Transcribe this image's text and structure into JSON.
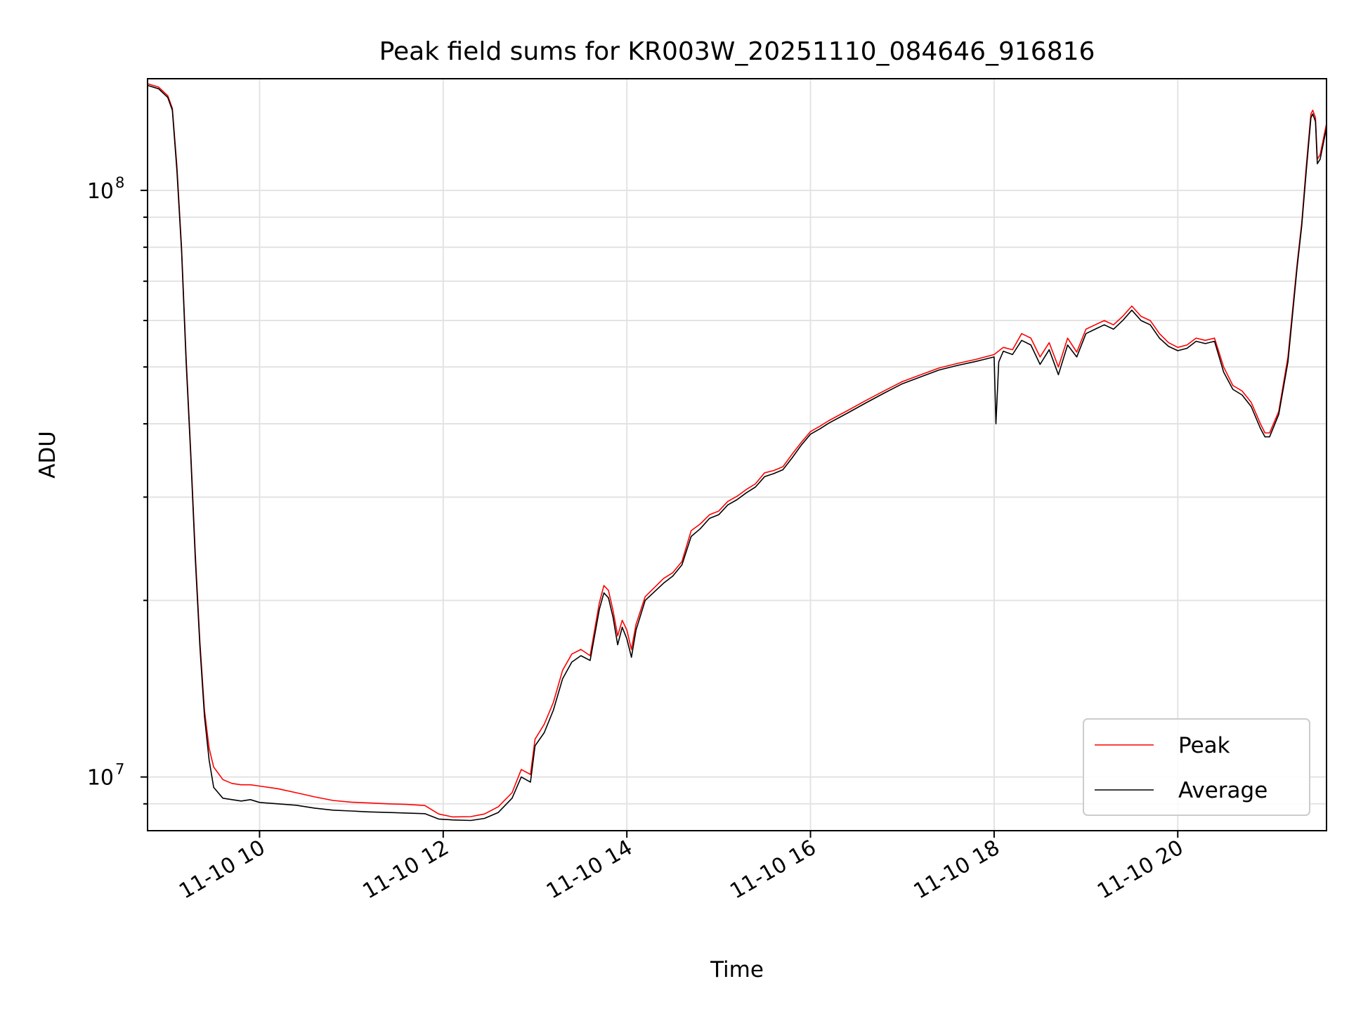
{
  "chart_data": {
    "type": "line",
    "title": "Peak field sums for KR003W_20251110_084646_916816",
    "xlabel": "Time",
    "ylabel": "ADU",
    "x_unit": "hours",
    "xlim": [
      8.78,
      21.62
    ],
    "ylim": [
      8100000,
      155000000
    ],
    "yscale": "log",
    "grid": true,
    "legend_position": "lower-right",
    "x_ticks": [
      {
        "value": 10,
        "label": "11-10 10"
      },
      {
        "value": 12,
        "label": "11-10 12"
      },
      {
        "value": 14,
        "label": "11-10 14"
      },
      {
        "value": 16,
        "label": "11-10 16"
      },
      {
        "value": 18,
        "label": "11-10 18"
      },
      {
        "value": 20,
        "label": "11-10 20"
      }
    ],
    "y_ticks": [
      {
        "value": 10000000,
        "base": "10",
        "exp": "7"
      },
      {
        "value": 100000000,
        "base": "10",
        "exp": "8"
      }
    ],
    "series": [
      {
        "name": "Peak",
        "color": "#ff0000",
        "points": [
          [
            8.78,
            152000000
          ],
          [
            8.9,
            150000000
          ],
          [
            9.0,
            145000000
          ],
          [
            9.05,
            138000000
          ],
          [
            9.1,
            110000000
          ],
          [
            9.15,
            80000000
          ],
          [
            9.2,
            52000000
          ],
          [
            9.25,
            36000000
          ],
          [
            9.3,
            24000000
          ],
          [
            9.35,
            17000000
          ],
          [
            9.4,
            13000000
          ],
          [
            9.45,
            11200000
          ],
          [
            9.5,
            10400000
          ],
          [
            9.6,
            9900000
          ],
          [
            9.7,
            9750000
          ],
          [
            9.8,
            9700000
          ],
          [
            9.9,
            9700000
          ],
          [
            10.0,
            9650000
          ],
          [
            10.2,
            9550000
          ],
          [
            10.4,
            9400000
          ],
          [
            10.6,
            9250000
          ],
          [
            10.8,
            9120000
          ],
          [
            11.0,
            9060000
          ],
          [
            11.2,
            9030000
          ],
          [
            11.4,
            9000000
          ],
          [
            11.6,
            8980000
          ],
          [
            11.8,
            8940000
          ],
          [
            11.95,
            8650000
          ],
          [
            12.1,
            8550000
          ],
          [
            12.3,
            8560000
          ],
          [
            12.45,
            8650000
          ],
          [
            12.6,
            8900000
          ],
          [
            12.75,
            9400000
          ],
          [
            12.85,
            10300000
          ],
          [
            12.95,
            10100000
          ],
          [
            13.0,
            11600000
          ],
          [
            13.1,
            12300000
          ],
          [
            13.2,
            13400000
          ],
          [
            13.3,
            15200000
          ],
          [
            13.4,
            16200000
          ],
          [
            13.5,
            16500000
          ],
          [
            13.6,
            16100000
          ],
          [
            13.7,
            19800000
          ],
          [
            13.75,
            21200000
          ],
          [
            13.8,
            20800000
          ],
          [
            13.85,
            19200000
          ],
          [
            13.9,
            17400000
          ],
          [
            13.95,
            18500000
          ],
          [
            14.0,
            17800000
          ],
          [
            14.05,
            16500000
          ],
          [
            14.1,
            18200000
          ],
          [
            14.2,
            20300000
          ],
          [
            14.4,
            21800000
          ],
          [
            14.5,
            22300000
          ],
          [
            14.6,
            23300000
          ],
          [
            14.7,
            26300000
          ],
          [
            14.8,
            27000000
          ],
          [
            14.9,
            28000000
          ],
          [
            15.0,
            28400000
          ],
          [
            15.1,
            29500000
          ],
          [
            15.2,
            30100000
          ],
          [
            15.3,
            30900000
          ],
          [
            15.4,
            31600000
          ],
          [
            15.5,
            33000000
          ],
          [
            15.6,
            33300000
          ],
          [
            15.7,
            33800000
          ],
          [
            15.8,
            35500000
          ],
          [
            15.9,
            37200000
          ],
          [
            16.0,
            38800000
          ],
          [
            16.1,
            39600000
          ],
          [
            16.2,
            40500000
          ],
          [
            16.4,
            42100000
          ],
          [
            16.6,
            43800000
          ],
          [
            16.8,
            45500000
          ],
          [
            17.0,
            47200000
          ],
          [
            17.2,
            48500000
          ],
          [
            17.4,
            49800000
          ],
          [
            17.6,
            50700000
          ],
          [
            17.8,
            51500000
          ],
          [
            18.0,
            52500000
          ],
          [
            18.1,
            54000000
          ],
          [
            18.2,
            53500000
          ],
          [
            18.3,
            57000000
          ],
          [
            18.4,
            56000000
          ],
          [
            18.5,
            52000000
          ],
          [
            18.6,
            55000000
          ],
          [
            18.7,
            50000000
          ],
          [
            18.8,
            56000000
          ],
          [
            18.9,
            53000000
          ],
          [
            19.0,
            58000000
          ],
          [
            19.1,
            59000000
          ],
          [
            19.2,
            60000000
          ],
          [
            19.3,
            59000000
          ],
          [
            19.4,
            61000000
          ],
          [
            19.5,
            63500000
          ],
          [
            19.6,
            61000000
          ],
          [
            19.7,
            60000000
          ],
          [
            19.8,
            57000000
          ],
          [
            19.9,
            55000000
          ],
          [
            20.0,
            54000000
          ],
          [
            20.1,
            54500000
          ],
          [
            20.2,
            56000000
          ],
          [
            20.3,
            55500000
          ],
          [
            20.4,
            56000000
          ],
          [
            20.5,
            50000000
          ],
          [
            20.6,
            46500000
          ],
          [
            20.7,
            45500000
          ],
          [
            20.8,
            43500000
          ],
          [
            20.9,
            40000000
          ],
          [
            20.95,
            38600000
          ],
          [
            21.0,
            38600000
          ],
          [
            21.1,
            42000000
          ],
          [
            21.2,
            52000000
          ],
          [
            21.3,
            75000000
          ],
          [
            21.35,
            88000000
          ],
          [
            21.4,
            110000000
          ],
          [
            21.45,
            135000000
          ],
          [
            21.47,
            137000000
          ],
          [
            21.5,
            133000000
          ],
          [
            21.52,
            113000000
          ],
          [
            21.55,
            115000000
          ],
          [
            21.62,
            130000000
          ]
        ]
      },
      {
        "name": "Average",
        "color": "#000000",
        "points": [
          [
            8.78,
            151000000
          ],
          [
            8.9,
            149000000
          ],
          [
            9.0,
            144000000
          ],
          [
            9.05,
            137000000
          ],
          [
            9.1,
            108000000
          ],
          [
            9.15,
            79000000
          ],
          [
            9.2,
            51000000
          ],
          [
            9.25,
            35500000
          ],
          [
            9.3,
            23500000
          ],
          [
            9.35,
            16700000
          ],
          [
            9.4,
            12700000
          ],
          [
            9.45,
            10700000
          ],
          [
            9.5,
            9600000
          ],
          [
            9.6,
            9200000
          ],
          [
            9.7,
            9150000
          ],
          [
            9.8,
            9100000
          ],
          [
            9.9,
            9150000
          ],
          [
            10.0,
            9050000
          ],
          [
            10.2,
            9000000
          ],
          [
            10.4,
            8950000
          ],
          [
            10.6,
            8850000
          ],
          [
            10.8,
            8780000
          ],
          [
            11.0,
            8750000
          ],
          [
            11.2,
            8720000
          ],
          [
            11.4,
            8700000
          ],
          [
            11.6,
            8680000
          ],
          [
            11.8,
            8660000
          ],
          [
            11.95,
            8480000
          ],
          [
            12.1,
            8450000
          ],
          [
            12.3,
            8430000
          ],
          [
            12.45,
            8500000
          ],
          [
            12.6,
            8700000
          ],
          [
            12.75,
            9200000
          ],
          [
            12.85,
            10000000
          ],
          [
            12.95,
            9800000
          ],
          [
            13.0,
            11300000
          ],
          [
            13.1,
            11900000
          ],
          [
            13.2,
            13000000
          ],
          [
            13.3,
            14700000
          ],
          [
            13.4,
            15700000
          ],
          [
            13.5,
            16100000
          ],
          [
            13.6,
            15800000
          ],
          [
            13.7,
            19300000
          ],
          [
            13.75,
            20600000
          ],
          [
            13.8,
            20200000
          ],
          [
            13.85,
            18700000
          ],
          [
            13.9,
            16800000
          ],
          [
            13.95,
            18000000
          ],
          [
            14.0,
            17200000
          ],
          [
            14.05,
            16000000
          ],
          [
            14.1,
            17800000
          ],
          [
            14.2,
            20000000
          ],
          [
            14.4,
            21400000
          ],
          [
            14.5,
            22000000
          ],
          [
            14.6,
            23000000
          ],
          [
            14.7,
            25700000
          ],
          [
            14.8,
            26500000
          ],
          [
            14.9,
            27600000
          ],
          [
            15.0,
            28000000
          ],
          [
            15.1,
            29100000
          ],
          [
            15.2,
            29700000
          ],
          [
            15.3,
            30500000
          ],
          [
            15.4,
            31200000
          ],
          [
            15.5,
            32500000
          ],
          [
            15.6,
            32900000
          ],
          [
            15.7,
            33400000
          ],
          [
            15.8,
            35000000
          ],
          [
            15.9,
            36800000
          ],
          [
            16.0,
            38400000
          ],
          [
            16.1,
            39200000
          ],
          [
            16.2,
            40100000
          ],
          [
            16.4,
            41700000
          ],
          [
            16.6,
            43400000
          ],
          [
            16.8,
            45100000
          ],
          [
            17.0,
            46800000
          ],
          [
            17.2,
            48100000
          ],
          [
            17.4,
            49400000
          ],
          [
            17.6,
            50300000
          ],
          [
            17.8,
            51100000
          ],
          [
            18.0,
            52000000
          ],
          [
            18.02,
            40000000
          ],
          [
            18.05,
            51000000
          ],
          [
            18.1,
            53200000
          ],
          [
            18.2,
            52500000
          ],
          [
            18.3,
            55500000
          ],
          [
            18.4,
            54500000
          ],
          [
            18.5,
            50500000
          ],
          [
            18.6,
            53500000
          ],
          [
            18.7,
            48500000
          ],
          [
            18.8,
            54500000
          ],
          [
            18.9,
            52000000
          ],
          [
            19.0,
            57000000
          ],
          [
            19.1,
            58000000
          ],
          [
            19.2,
            59000000
          ],
          [
            19.3,
            58000000
          ],
          [
            19.4,
            60000000
          ],
          [
            19.5,
            62500000
          ],
          [
            19.6,
            60000000
          ],
          [
            19.7,
            59000000
          ],
          [
            19.8,
            56000000
          ],
          [
            19.9,
            54200000
          ],
          [
            20.0,
            53300000
          ],
          [
            20.1,
            53800000
          ],
          [
            20.2,
            55300000
          ],
          [
            20.3,
            54800000
          ],
          [
            20.4,
            55300000
          ],
          [
            20.5,
            49000000
          ],
          [
            20.6,
            45800000
          ],
          [
            20.7,
            44800000
          ],
          [
            20.8,
            42800000
          ],
          [
            20.9,
            39300000
          ],
          [
            20.95,
            38000000
          ],
          [
            21.0,
            38000000
          ],
          [
            21.1,
            41500000
          ],
          [
            21.2,
            51000000
          ],
          [
            21.3,
            74000000
          ],
          [
            21.35,
            87000000
          ],
          [
            21.4,
            108000000
          ],
          [
            21.45,
            133000000
          ],
          [
            21.47,
            135000000
          ],
          [
            21.5,
            131000000
          ],
          [
            21.52,
            111000000
          ],
          [
            21.55,
            113000000
          ],
          [
            21.62,
            128000000
          ]
        ]
      }
    ]
  }
}
